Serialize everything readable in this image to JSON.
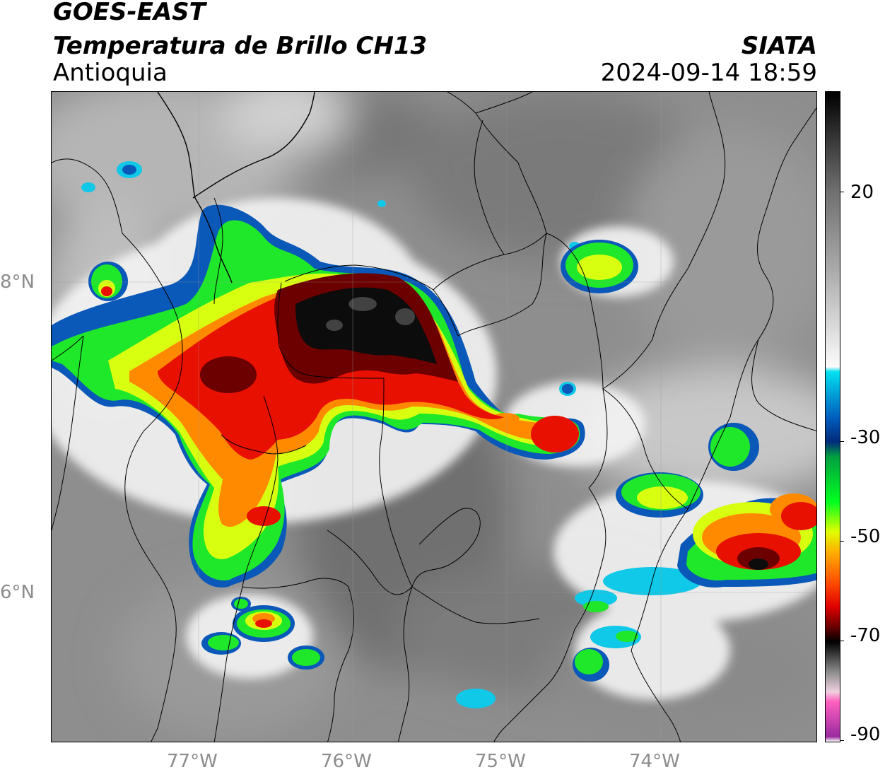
{
  "header": {
    "satellite": "GOES-EAST",
    "product": "Temperatura de Brillo CH13",
    "region": "Antioquia",
    "organization": "SIATA",
    "datetime": "2024-09-14 18:59"
  },
  "map": {
    "lon_range": [
      -77.95,
      -73.0
    ],
    "lat_range": [
      4.95,
      9.15
    ],
    "lon_ticks": [
      {
        "value": -77,
        "label": "77°W"
      },
      {
        "value": -76,
        "label": "76°W"
      },
      {
        "value": -75,
        "label": "75°W"
      },
      {
        "value": -74,
        "label": "74°W"
      }
    ],
    "lat_ticks": [
      {
        "value": 8,
        "label": "8°N"
      },
      {
        "value": 6,
        "label": "6°N"
      }
    ]
  },
  "colorbar": {
    "range": [
      -90,
      40
    ],
    "ticks": [
      {
        "value": 20,
        "label": "20"
      },
      {
        "value": -30,
        "label": "-30"
      },
      {
        "value": -50,
        "label": "-50"
      },
      {
        "value": -70,
        "label": "-70"
      },
      {
        "value": -90,
        "label": "-90"
      }
    ],
    "stops": [
      {
        "value": 40,
        "color": "#000000"
      },
      {
        "value": 30,
        "color": "#3a3a3a"
      },
      {
        "value": 20,
        "color": "#707070"
      },
      {
        "value": 5,
        "color": "#a8a8a8"
      },
      {
        "value": -15,
        "color": "#fbfbfb"
      },
      {
        "value": -16,
        "color": "#00e0f0"
      },
      {
        "value": -25,
        "color": "#0060c0"
      },
      {
        "value": -30,
        "color": "#002a7a"
      },
      {
        "value": -33,
        "color": "#00a040"
      },
      {
        "value": -42,
        "color": "#00ff20"
      },
      {
        "value": -48,
        "color": "#e0ff00"
      },
      {
        "value": -52,
        "color": "#ffb000"
      },
      {
        "value": -58,
        "color": "#ff5000"
      },
      {
        "value": -63,
        "color": "#e00000"
      },
      {
        "value": -67,
        "color": "#6a0000"
      },
      {
        "value": -70,
        "color": "#000000"
      },
      {
        "value": -76,
        "color": "#8a8a8a"
      },
      {
        "value": -80,
        "color": "#f0d0e0"
      },
      {
        "value": -82,
        "color": "#ff60c0"
      },
      {
        "value": -89,
        "color": "#9a2aa0"
      },
      {
        "value": -90,
        "color": "#ffffff"
      }
    ]
  }
}
